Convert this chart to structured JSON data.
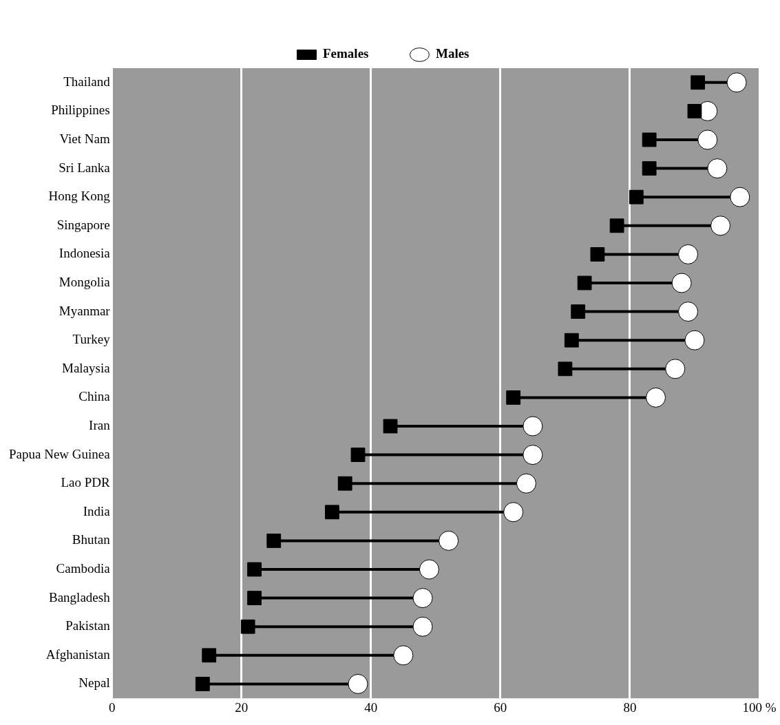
{
  "chart_data": {
    "type": "scatter",
    "orientation": "horizontal",
    "categories": [
      "Thailand",
      "Philippines",
      "Viet Nam",
      "Sri Lanka",
      "Hong Kong",
      "Singapore",
      "Indonesia",
      "Mongolia",
      "Myanmar",
      "Turkey",
      "Malaysia",
      "China",
      "Iran",
      "Papua New Guinea",
      "Lao PDR",
      "India",
      "Bhutan",
      "Cambodia",
      "Bangladesh",
      "Pakistan",
      "Afghanistan",
      "Nepal"
    ],
    "series": [
      {
        "name": "Females",
        "color": "#000000",
        "marker": "square",
        "values": [
          90.5,
          90,
          83,
          83,
          81,
          78,
          75,
          73,
          72,
          71,
          70,
          62,
          43,
          38,
          36,
          34,
          25,
          22,
          22,
          21,
          15,
          14
        ]
      },
      {
        "name": "Males",
        "color": "#ffffff",
        "marker": "circle",
        "values": [
          96.5,
          92,
          92,
          93.5,
          97,
          94,
          89,
          88,
          89,
          90,
          87,
          84,
          65,
          65,
          64,
          62,
          52,
          49,
          48,
          48,
          45,
          38
        ]
      }
    ],
    "xlim": [
      0,
      100
    ],
    "xticks": [
      0,
      20,
      40,
      60,
      80,
      {
        "value": 100,
        "label": "100 %"
      }
    ],
    "grid": "x",
    "legend": "top"
  }
}
